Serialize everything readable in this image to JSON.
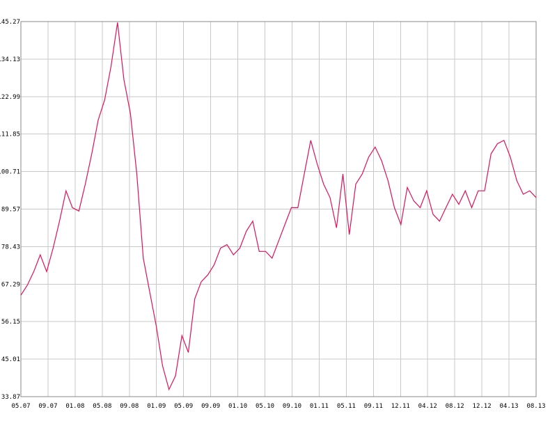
{
  "chart_data": {
    "type": "line",
    "title": "",
    "xlabel": "",
    "ylabel": "",
    "grid": true,
    "legend": "none",
    "line_color": "#e0105a",
    "y_ticks": [
      "145.27",
      "134.13",
      "122.99",
      "111.85",
      "100.71",
      "89.57",
      "78.43",
      "67.29",
      "56.15",
      "45.01",
      "33.87"
    ],
    "ylim": [
      33.87,
      145.27
    ],
    "x_ticks": [
      "05.07",
      "09.07",
      "01.08",
      "05.08",
      "09.08",
      "01.09",
      "05.09",
      "09.09",
      "01.10",
      "05.10",
      "09.10",
      "01.11",
      "05.11",
      "09.11",
      "12.11",
      "04.12",
      "08.12",
      "12.12",
      "04.13",
      "08.13"
    ],
    "x_range_months": [
      0,
      80
    ],
    "series": [
      {
        "x_months": [
          0,
          1,
          2,
          3,
          4,
          5,
          6,
          7,
          8,
          9,
          10,
          11,
          12,
          13,
          14,
          15,
          16,
          17,
          18,
          19,
          20,
          21,
          22,
          23,
          24,
          25,
          26,
          27,
          28,
          29,
          30,
          31,
          32,
          33,
          34,
          35,
          36,
          37,
          38,
          39,
          40,
          41,
          42,
          43,
          44,
          45,
          46,
          47,
          48,
          49,
          50,
          51,
          52,
          53,
          54,
          55,
          56,
          57,
          58,
          59,
          60,
          61,
          62,
          63,
          64,
          65,
          66,
          67,
          68,
          69,
          70,
          71,
          72,
          73,
          74,
          75,
          76,
          77,
          78,
          79,
          80
        ],
        "values": [
          64,
          67,
          71,
          76,
          71,
          78,
          86,
          95,
          90,
          89,
          97,
          106,
          116,
          122,
          132,
          145,
          128,
          118,
          100,
          75,
          65,
          55,
          43,
          36,
          40,
          52,
          47,
          63,
          68,
          70,
          73,
          78,
          79,
          76,
          78,
          83,
          86,
          77,
          77,
          75,
          80,
          85,
          90,
          90,
          100,
          110,
          103,
          97,
          93,
          84,
          100,
          82,
          97,
          100,
          105,
          108,
          104,
          98,
          90,
          85,
          96,
          92,
          90,
          95,
          88,
          86,
          90,
          94,
          91,
          95,
          90,
          95,
          95,
          106,
          109,
          110,
          105,
          98,
          94,
          95,
          93
        ]
      }
    ]
  }
}
